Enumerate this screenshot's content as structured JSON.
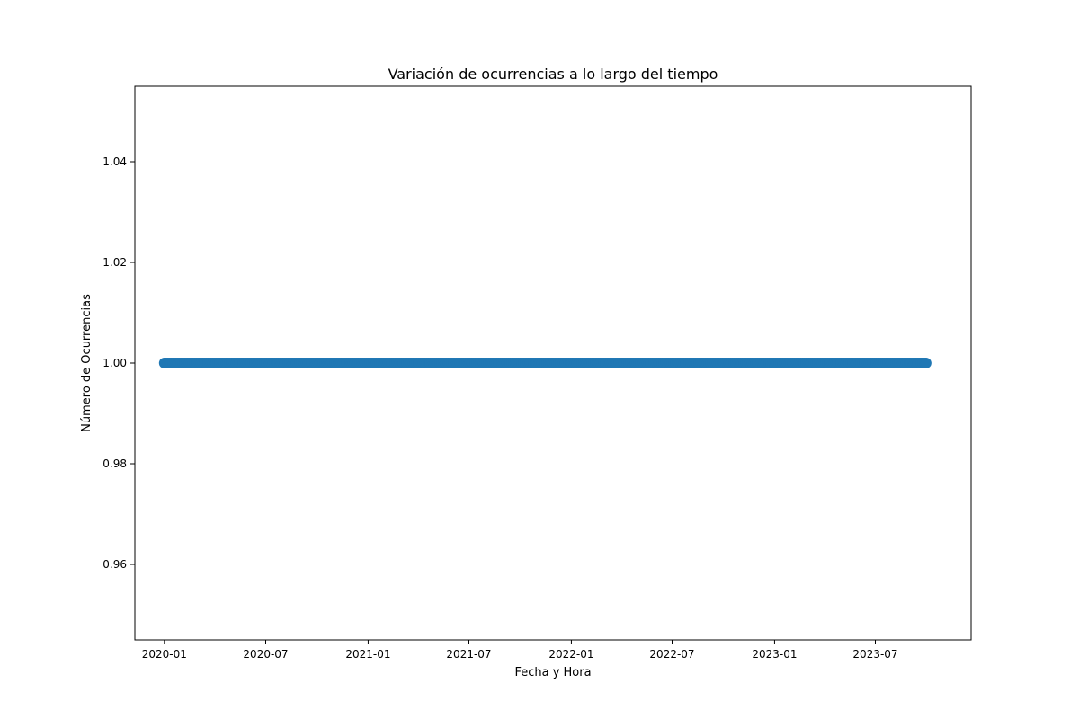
{
  "chart_data": {
    "type": "scatter",
    "title": "Variación de ocurrencias a lo largo del tiempo",
    "xlabel": "Fecha y Hora",
    "ylabel": "Número de Ocurrencias",
    "x_tick_labels": [
      "2020-01",
      "2020-07",
      "2021-01",
      "2021-07",
      "2022-01",
      "2022-07",
      "2023-01",
      "2023-07"
    ],
    "y_tick_labels": [
      "0.96",
      "0.98",
      "1.00",
      "1.02",
      "1.04"
    ],
    "xlim": [
      "2019-11-09",
      "2023-12-20"
    ],
    "ylim": [
      0.945,
      1.055
    ],
    "grid": false,
    "legend": "none",
    "series": [
      {
        "color": "#1f77b4",
        "x_range": [
          "2020-01-01",
          "2023-10-01"
        ],
        "y": 1.0
      }
    ]
  }
}
